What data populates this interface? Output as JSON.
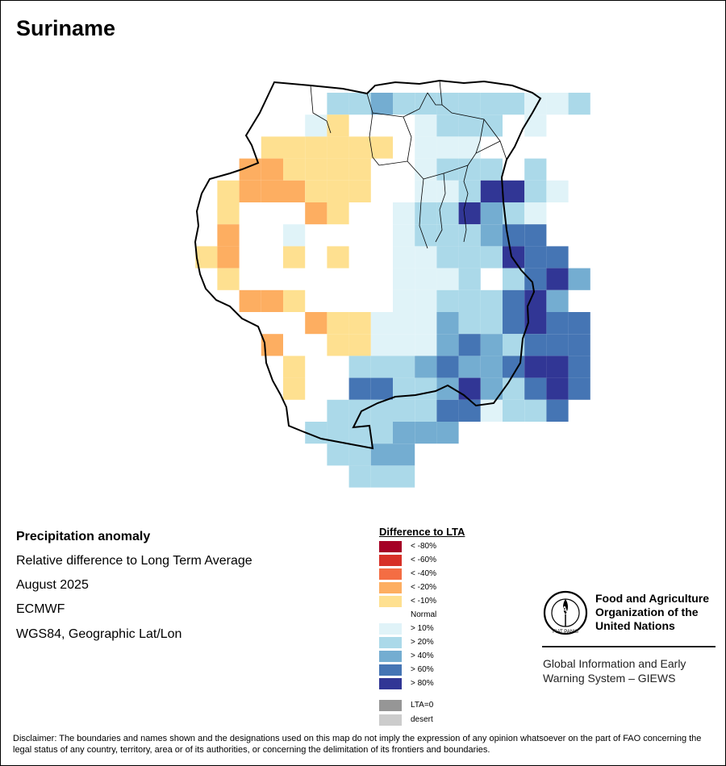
{
  "map": {
    "title": "Suriname",
    "grid_columns": 18,
    "grid_rows": 17,
    "cells": [
      "..N.....NNN.LLLNNL",
      "..L....B..L...L.L.",
      "......B...L...L...",
      "..BBBBBN..BD...N..",
      "..FFDBDLDD.NLLLD..",
      "..FFDBDDD.LD.DDL..",
      "..FFDBDDDDBL.LL..",
      "..FFFBDDNN.LDDN..."
    ]
  },
  "info": {
    "heading": "Precipitation anomaly",
    "subtitle": "Relative difference to Long Term Average",
    "period": "August 2025",
    "source": "ECMWF",
    "projection": "WGS84, Geographic Lat/Lon"
  },
  "legend": {
    "title": "Difference to LTA",
    "items": [
      {
        "label": "< -80%",
        "color": "#a50026"
      },
      {
        "label": "< -60%",
        "color": "#d73027"
      },
      {
        "label": "< -40%",
        "color": "#f46d43"
      },
      {
        "label": "< -20%",
        "color": "#fdae61"
      },
      {
        "label": "< -10%",
        "color": "#fee090"
      },
      {
        "label": "Normal",
        "color": "#ffffff"
      },
      {
        "label": "> 10%",
        "color": "#e0f3f8"
      },
      {
        "label": "> 20%",
        "color": "#abd9e9"
      },
      {
        "label": "> 40%",
        "color": "#74add1"
      },
      {
        "label": "> 60%",
        "color": "#4575b4"
      },
      {
        "label": "> 80%",
        "color": "#313695"
      }
    ],
    "extra_items": [
      {
        "label": "LTA=0",
        "color": "#969696"
      },
      {
        "label": "desert",
        "color": "#cccccc"
      }
    ]
  },
  "organization": {
    "name_line1": "Food and Agriculture",
    "name_line2": "Organization of the",
    "name_line3": "United Nations",
    "program_line1": "Global Information and Early",
    "program_line2": "Warning System – GIEWS",
    "logo_text": "FAO",
    "logo_motto": "FIAT PANIS"
  },
  "disclaimer": "Disclaimer: The boundaries and names shown and the designations used on this map do not imply the expression of any opinion whatsoever on the part of FAO concerning the legal status of any country, territory, area or of its authorities, or concerning the delimitation of its frontiers and boundaries."
}
